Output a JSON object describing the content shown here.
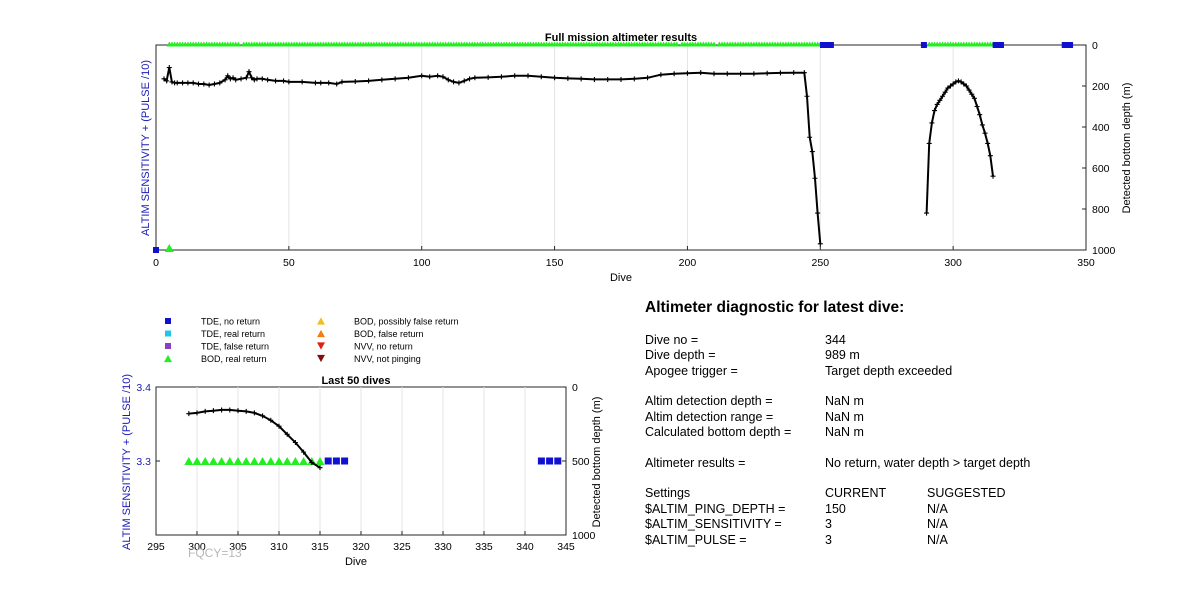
{
  "main_chart": {
    "title": "Full mission altimeter results",
    "xlabel": "Dive",
    "ylabel_left": "ALTIM SENSITIVITY + (PULSE /10)",
    "ylabel_right": "Detected bottom depth (m)",
    "x_ticks": [
      "0",
      "50",
      "100",
      "150",
      "200",
      "250",
      "300",
      "350"
    ],
    "y_right_ticks": [
      "0",
      "200",
      "400",
      "600",
      "800",
      "1000"
    ]
  },
  "legend": {
    "items": [
      {
        "label": "TDE, no return",
        "color": "#1010d0",
        "shape": "square"
      },
      {
        "label": "TDE, real return",
        "color": "#20c8e8",
        "shape": "square"
      },
      {
        "label": "TDE, false return",
        "color": "#8a40c0",
        "shape": "square"
      },
      {
        "label": "BOD, real return",
        "color": "#22ee22",
        "shape": "triangle-up"
      },
      {
        "label": "BOD, possibly false return",
        "color": "#f0c020",
        "shape": "triangle-up"
      },
      {
        "label": "BOD, false return",
        "color": "#f08010",
        "shape": "triangle-up"
      },
      {
        "label": "NVV, no return",
        "color": "#e02010",
        "shape": "triangle-down"
      },
      {
        "label": "NVV, not pinging",
        "color": "#801010",
        "shape": "triangle-down"
      }
    ]
  },
  "small_chart": {
    "title": "Last 50 dives",
    "xlabel": "Dive",
    "ylabel_left": "ALTIM SENSITIVITY + (PULSE /10)",
    "ylabel_right": "Detected bottom depth (m)",
    "x_ticks": [
      "295",
      "300",
      "305",
      "310",
      "315",
      "320",
      "325",
      "330",
      "335",
      "340",
      "345"
    ],
    "y_left_ticks": [
      "3.4",
      "3.3"
    ],
    "y_right_ticks": [
      "0",
      "500",
      "1000"
    ],
    "watermark": "FQCY=13"
  },
  "diagnostic": {
    "title": "Altimeter diagnostic for latest dive:",
    "dive_no_label": "Dive no =",
    "dive_no_value": "344",
    "dive_depth_label": "Dive depth =",
    "dive_depth_value": "989 m",
    "apogee_label": "Apogee trigger =",
    "apogee_value": "Target depth exceeded",
    "altim_depth_label": "Altim detection depth =",
    "altim_depth_value": "NaN m",
    "altim_range_label": "Altim detection range =",
    "altim_range_value": "NaN m",
    "calc_bottom_label": "Calculated bottom depth =",
    "calc_bottom_value": "NaN m",
    "results_label": "Altimeter results =",
    "results_value": "No return, water depth > target depth",
    "settings_label": "Settings",
    "current_label": "CURRENT",
    "suggested_label": "SUGGESTED",
    "ping_depth_label": "$ALTIM_PING_DEPTH =",
    "ping_depth_current": "150",
    "ping_depth_suggested": "N/A",
    "sensitivity_label": "$ALTIM_SENSITIVITY =",
    "sensitivity_current": "3",
    "sensitivity_suggested": "N/A",
    "pulse_label": "$ALTIM_PULSE =",
    "pulse_current": "3",
    "pulse_suggested": "N/A"
  },
  "chart_data": [
    {
      "type": "line",
      "title": "Full mission altimeter results",
      "xlabel": "Dive",
      "ylabel": "Detected bottom depth (m)",
      "xlim": [
        0,
        350
      ],
      "ylim_right": [
        0,
        1000
      ],
      "y_right_reversed": true,
      "grid": true,
      "series": [
        {
          "name": "",
          "axis": "right",
          "x": [
            3,
            4,
            5,
            6,
            7,
            8,
            10,
            12,
            14,
            16,
            18,
            20,
            22,
            24,
            26,
            27,
            28,
            29,
            30,
            32,
            34,
            35,
            36,
            37,
            38,
            40,
            42,
            45,
            48,
            50,
            55,
            60,
            62,
            65,
            68,
            70,
            75,
            80,
            85,
            90,
            95,
            100,
            103,
            106,
            108,
            110,
            112,
            114,
            116,
            118,
            120,
            125,
            130,
            135,
            140,
            145,
            150,
            155,
            160,
            165,
            170,
            175,
            180,
            185,
            190,
            195,
            200,
            205,
            210,
            215,
            220,
            225,
            230,
            235,
            240,
            244,
            245,
            246,
            247,
            248,
            249,
            250
          ],
          "y": [
            165,
            175,
            110,
            180,
            185,
            185,
            185,
            185,
            185,
            190,
            190,
            195,
            190,
            185,
            170,
            150,
            165,
            160,
            170,
            165,
            160,
            130,
            160,
            170,
            165,
            165,
            170,
            175,
            175,
            180,
            180,
            185,
            185,
            185,
            190,
            180,
            178,
            175,
            170,
            165,
            160,
            150,
            155,
            150,
            155,
            170,
            180,
            185,
            175,
            165,
            160,
            158,
            155,
            150,
            150,
            155,
            160,
            163,
            165,
            168,
            168,
            168,
            165,
            160,
            145,
            140,
            138,
            135,
            140,
            140,
            140,
            140,
            138,
            136,
            135,
            135,
            250,
            450,
            520,
            650,
            820,
            970
          ]
        },
        {
          "name": "",
          "axis": "right",
          "x": [
            290,
            291,
            292,
            293,
            294,
            295,
            296,
            297,
            298,
            299,
            300,
            301,
            302,
            303,
            304,
            305,
            306,
            307,
            308,
            309,
            310,
            311,
            312,
            313,
            314,
            315
          ],
          "y": [
            820,
            480,
            380,
            320,
            290,
            270,
            250,
            230,
            210,
            200,
            190,
            180,
            175,
            180,
            190,
            200,
            220,
            240,
            260,
            300,
            340,
            390,
            430,
            480,
            540,
            640
          ]
        },
        {
          "name": "TDE, no return",
          "axis": "right",
          "x": [
            0,
            251,
            252,
            253,
            254,
            289,
            316,
            317,
            318,
            342,
            343,
            344
          ],
          "y": [
            1000,
            0,
            0,
            0,
            0,
            0,
            0,
            0,
            0,
            0,
            0,
            0
          ]
        },
        {
          "name": "BOD, real return",
          "axis": "right",
          "x_ranges": [
            [
              5,
              31
            ],
            [
              33,
              196
            ],
            [
              198,
              210
            ],
            [
              212,
              250
            ],
            [
              291,
              315
            ]
          ],
          "y": 0,
          "x_extra": [
            5
          ],
          "y_extra": [
            1000
          ]
        }
      ]
    },
    {
      "type": "line",
      "title": "Last 50 dives",
      "xlabel": "Dive",
      "ylabel_left": "ALTIM SENSITIVITY + (PULSE /10)",
      "ylabel_right": "Detected bottom depth (m)",
      "xlim": [
        295,
        345
      ],
      "ylim_left": [
        3.2,
        3.4
      ],
      "ylim_right": [
        0,
        1000
      ],
      "y_right_reversed": true,
      "grid": true,
      "series": [
        {
          "name": "",
          "axis": "right",
          "x": [
            299,
            300,
            301,
            302,
            303,
            304,
            305,
            306,
            307,
            308,
            309,
            310,
            311,
            312,
            313,
            314,
            315
          ],
          "y": [
            180,
            175,
            165,
            160,
            155,
            155,
            160,
            165,
            175,
            195,
            225,
            265,
            320,
            375,
            440,
            510,
            545
          ]
        },
        {
          "name": "BOD, real return",
          "axis": "left",
          "x": [
            299,
            300,
            301,
            302,
            303,
            304,
            305,
            306,
            307,
            308,
            309,
            310,
            311,
            312,
            313,
            314,
            315
          ],
          "y": [
            3.3,
            3.3,
            3.3,
            3.3,
            3.3,
            3.3,
            3.3,
            3.3,
            3.3,
            3.3,
            3.3,
            3.3,
            3.3,
            3.3,
            3.3,
            3.3,
            3.3
          ]
        },
        {
          "name": "TDE, no return",
          "axis": "left",
          "x": [
            316,
            317,
            318,
            342,
            343,
            344
          ],
          "y": [
            3.3,
            3.3,
            3.3,
            3.3,
            3.3,
            3.3
          ]
        }
      ]
    }
  ]
}
